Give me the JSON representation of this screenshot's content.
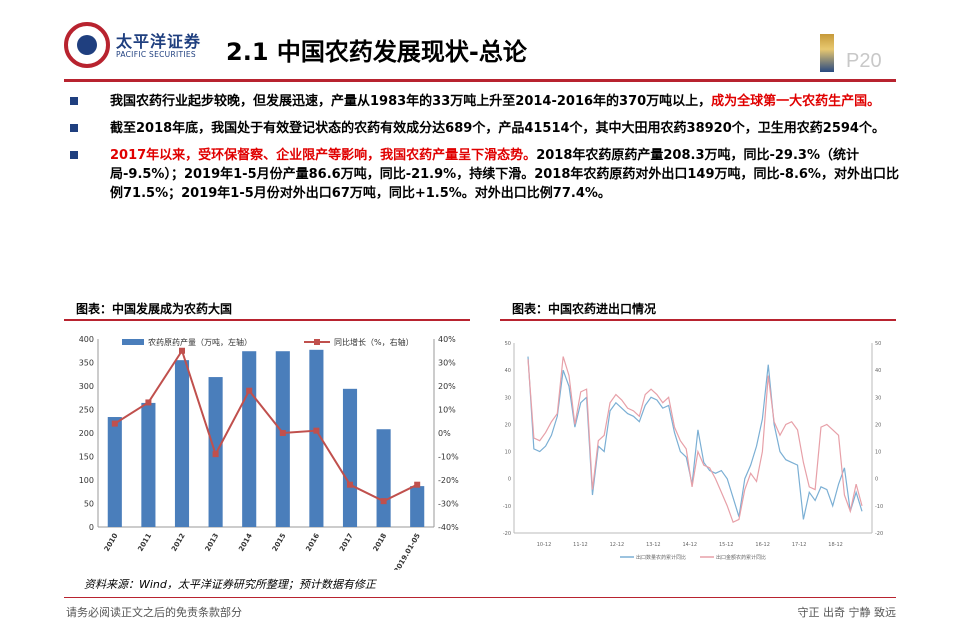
{
  "header": {
    "logo_cn": "太平洋证券",
    "logo_en": "PACIFIC SECURITIES",
    "title": "2.1 中国农药发展现状-总论",
    "page_number": "P20"
  },
  "bullets": [
    {
      "parts": [
        {
          "text": "我国农药行业起步较晚，但发展迅速，产量从1983年的33万吨上升至2014-2016年的370万吨以上，",
          "red": false
        },
        {
          "text": "成为全球第一大农药生产国。",
          "red": true
        }
      ]
    },
    {
      "parts": [
        {
          "text": "截至2018年底，我国处于有效登记状态的农药有效成分达689个，产品41514个，其中大田用农药38920个，卫生用农药2594个。",
          "red": false
        }
      ]
    },
    {
      "parts": [
        {
          "text": "2017年以来，受环保督察、企业限产等影响，我国农药产量呈下滑态势。",
          "red": true
        },
        {
          "text": "2018年农药原药产量208.3万吨，同比-29.3%（统计局-9.5%）；2019年1-5月份产量86.6万吨，同比-21.9%，持续下滑。2018年农药原药对外出口149万吨，同比-8.6%，对外出口比例71.5%；2019年1-5月份对外出口67万吨，同比+1.5%。对外出口比例77.4%。",
          "red": false
        }
      ]
    }
  ],
  "figures": {
    "left_title": "图表：中国发展成为农药大国",
    "right_title": "图表：中国农药进出口情况"
  },
  "source": "资料来源：Wind，太平洋证券研究所整理；预计数据有修正",
  "footer": {
    "left": "请务必阅读正文之后的免责条款部分",
    "right": "守正 出奇 宁静 致远"
  },
  "colors": {
    "bar": "#4a7ebb",
    "line": "#c0504d",
    "brand_red": "#b8232f",
    "brand_blue": "#1f3f7f",
    "trade_blue": "#7bafd4",
    "trade_pink": "#e7a0a8"
  },
  "chart_data": [
    {
      "type": "bar",
      "categories": [
        "2010",
        "2011",
        "2012",
        "2013",
        "2014",
        "2015",
        "2016",
        "2017",
        "2018",
        "2019.01-05"
      ],
      "series": [
        {
          "name": "农药原药产量（万吨，左轴）",
          "type": "bar",
          "axis": "left",
          "values": [
            234,
            264,
            355,
            319,
            374,
            374,
            377,
            294,
            208,
            87
          ]
        },
        {
          "name": "同比增长（%，右轴）",
          "type": "line",
          "axis": "right",
          "values": [
            4,
            13,
            35,
            -9,
            18,
            0,
            1,
            -22,
            -29,
            -22
          ]
        }
      ],
      "ylim_left": [
        0,
        400
      ],
      "yticks_left": [
        0,
        50,
        100,
        150,
        200,
        250,
        300,
        350,
        400
      ],
      "ylim_right": [
        -40,
        40
      ],
      "yticks_right": [
        "-40%",
        "-30%",
        "-20%",
        "-10%",
        "0%",
        "10%",
        "20%",
        "30%",
        "40%"
      ],
      "legend_position": "top"
    },
    {
      "type": "line",
      "x_ticks": [
        "10-12",
        "11-12",
        "12-12",
        "13-12",
        "14-12",
        "15-12",
        "16-12",
        "17-12",
        "18-12"
      ],
      "series": [
        {
          "name": "出口数量农药累计同比",
          "axis": "right",
          "values": [
            45,
            11,
            10,
            12,
            16,
            23,
            40,
            34,
            19,
            28,
            30,
            -6,
            12,
            10,
            25,
            28,
            26,
            24,
            23,
            21,
            27,
            30,
            29,
            26,
            27,
            17,
            10,
            8,
            -2,
            18,
            6,
            3,
            2,
            3,
            0,
            -7,
            -14,
            0,
            5,
            12,
            22,
            42,
            20,
            10,
            7,
            6,
            5,
            -15,
            -5,
            -8,
            -3,
            -4,
            -10,
            -2,
            4,
            -12,
            -5,
            -12
          ]
        },
        {
          "name": "出口金额农药累计同比",
          "axis": "left",
          "values": [
            44,
            15,
            14,
            17,
            21,
            24,
            45,
            38,
            20,
            32,
            33,
            -4,
            14,
            16,
            28,
            31,
            29,
            26,
            25,
            23,
            31,
            33,
            31,
            28,
            30,
            19,
            14,
            11,
            -3,
            10,
            5,
            4,
            0,
            -5,
            -10,
            -16,
            -15,
            -4,
            2,
            -1,
            10,
            38,
            21,
            16,
            20,
            21,
            18,
            6,
            -3,
            -4,
            19,
            20,
            18,
            16,
            -6,
            -12,
            -2,
            -10
          ]
        }
      ],
      "ylim": [
        -20,
        50
      ],
      "yticks": [
        -20,
        -10,
        0,
        10,
        20,
        30,
        40,
        50
      ],
      "legend_position": "bottom"
    }
  ]
}
